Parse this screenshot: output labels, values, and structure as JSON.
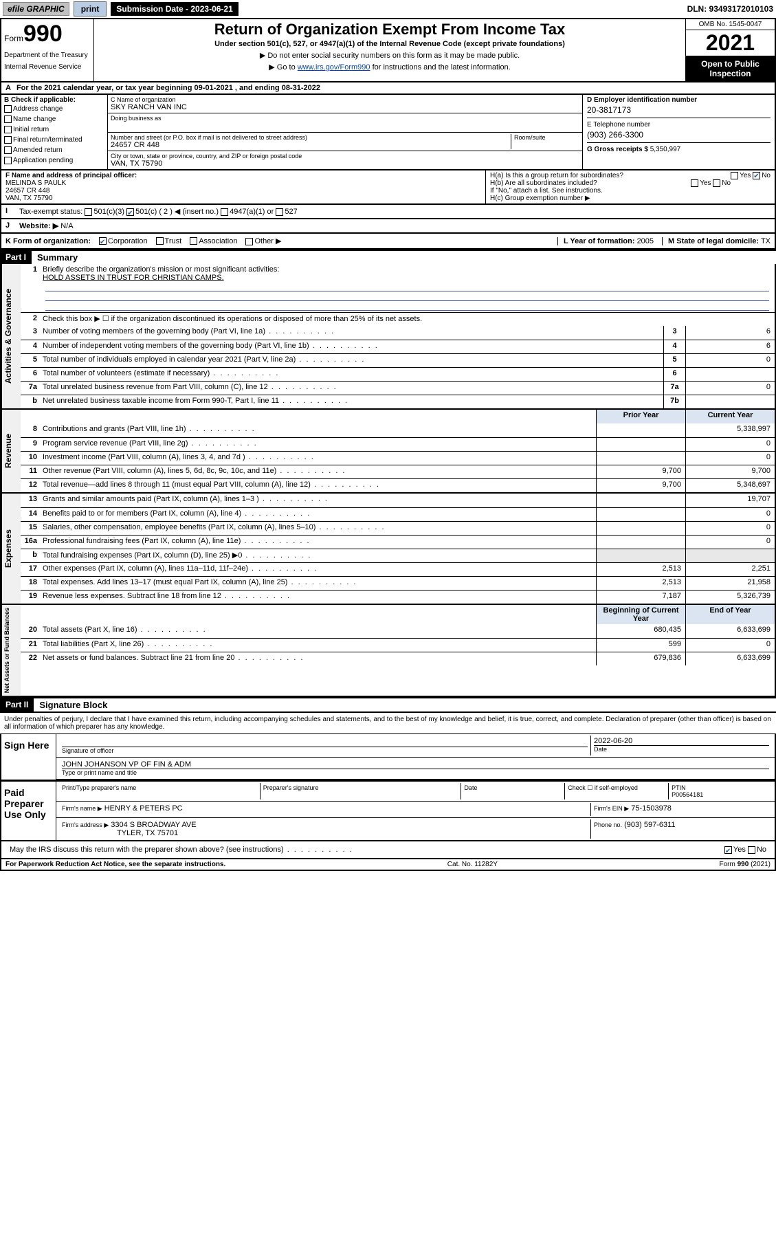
{
  "topbar": {
    "efile": "efile GRAPHIC",
    "print": "print",
    "submission": "Submission Date - 2023-06-21",
    "dln": "DLN: 93493172010103"
  },
  "header": {
    "form_label": "Form",
    "form_num": "990",
    "dept": "Department of the Treasury",
    "irs": "Internal Revenue Service",
    "title": "Return of Organization Exempt From Income Tax",
    "sub1": "Under section 501(c), 527, or 4947(a)(1) of the Internal Revenue Code (except private foundations)",
    "sub2a": "▶ Do not enter social security numbers on this form as it may be made public.",
    "sub2b_pre": "▶ Go to ",
    "sub2b_link": "www.irs.gov/Form990",
    "sub2b_post": " for instructions and the latest information.",
    "omb": "OMB No. 1545-0047",
    "year": "2021",
    "open": "Open to Public Inspection"
  },
  "row_a": {
    "label": "A",
    "text": "For the 2021 calendar year, or tax year beginning 09-01-2021   , and ending 08-31-2022"
  },
  "col_b": {
    "label": "B Check if applicable:",
    "items": [
      "Address change",
      "Name change",
      "Initial return",
      "Final return/terminated",
      "Amended return",
      "Application pending"
    ]
  },
  "col_c": {
    "name_label": "C Name of organization",
    "name": "SKY RANCH VAN INC",
    "dba_label": "Doing business as",
    "dba": "",
    "street_label": "Number and street (or P.O. box if mail is not delivered to street address)",
    "street": "24657 CR 448",
    "room_label": "Room/suite",
    "city_label": "City or town, state or province, country, and ZIP or foreign postal code",
    "city": "VAN, TX  75790"
  },
  "col_de": {
    "d_label": "D Employer identification number",
    "d_val": "20-3817173",
    "e_label": "E Telephone number",
    "e_val": "(903) 266-3300",
    "g_label": "G Gross receipts $",
    "g_val": "5,350,997"
  },
  "row_f": {
    "label": "F  Name and address of principal officer:",
    "name": "MELINDA S PAULK",
    "street": "24657 CR 448",
    "city": "VAN, TX  75790"
  },
  "row_h": {
    "ha": "H(a)  Is this a group return for subordinates?",
    "ha_yes": "Yes",
    "ha_no": "No",
    "hb": "H(b)  Are all subordinates included?",
    "hb_note": "If \"No,\" attach a list. See instructions.",
    "hc": "H(c)  Group exemption number ▶"
  },
  "row_i": {
    "label": "Tax-exempt status:",
    "opts": [
      "501(c)(3)",
      "501(c) ( 2 ) ◀ (insert no.)",
      "4947(a)(1) or",
      "527"
    ]
  },
  "row_j": {
    "label": "Website: ▶",
    "val": "N/A"
  },
  "row_k": {
    "label": "K Form of organization:",
    "opts": [
      "Corporation",
      "Trust",
      "Association",
      "Other ▶"
    ],
    "l_label": "L Year of formation:",
    "l_val": "2005",
    "m_label": "M State of legal domicile:",
    "m_val": "TX"
  },
  "part1": {
    "hdr": "Part I",
    "title": "Summary",
    "line1_label": "Briefly describe the organization's mission or most significant activities:",
    "line1_val": "HOLD ASSETS IN TRUST FOR CHRISTIAN CAMPS.",
    "line2": "Check this box ▶ ☐  if the organization discontinued its operations or disposed of more than 25% of its net assets.",
    "lines_ag": [
      {
        "n": "3",
        "t": "Number of voting members of the governing body (Part VI, line 1a)",
        "b": "3",
        "v": "6"
      },
      {
        "n": "4",
        "t": "Number of independent voting members of the governing body (Part VI, line 1b)",
        "b": "4",
        "v": "6"
      },
      {
        "n": "5",
        "t": "Total number of individuals employed in calendar year 2021 (Part V, line 2a)",
        "b": "5",
        "v": "0"
      },
      {
        "n": "6",
        "t": "Total number of volunteers (estimate if necessary)",
        "b": "6",
        "v": ""
      },
      {
        "n": "7a",
        "t": "Total unrelated business revenue from Part VIII, column (C), line 12",
        "b": "7a",
        "v": "0"
      },
      {
        "n": "b",
        "t": "Net unrelated business taxable income from Form 990-T, Part I, line 11",
        "b": "7b",
        "v": ""
      }
    ],
    "col_hdr_prior": "Prior Year",
    "col_hdr_curr": "Current Year",
    "revenue": [
      {
        "n": "8",
        "t": "Contributions and grants (Part VIII, line 1h)",
        "pv": "",
        "cv": "5,338,997"
      },
      {
        "n": "9",
        "t": "Program service revenue (Part VIII, line 2g)",
        "pv": "",
        "cv": "0"
      },
      {
        "n": "10",
        "t": "Investment income (Part VIII, column (A), lines 3, 4, and 7d )",
        "pv": "",
        "cv": "0"
      },
      {
        "n": "11",
        "t": "Other revenue (Part VIII, column (A), lines 5, 6d, 8c, 9c, 10c, and 11e)",
        "pv": "9,700",
        "cv": "9,700"
      },
      {
        "n": "12",
        "t": "Total revenue—add lines 8 through 11 (must equal Part VIII, column (A), line 12)",
        "pv": "9,700",
        "cv": "5,348,697"
      }
    ],
    "expenses": [
      {
        "n": "13",
        "t": "Grants and similar amounts paid (Part IX, column (A), lines 1–3 )",
        "pv": "",
        "cv": "19,707"
      },
      {
        "n": "14",
        "t": "Benefits paid to or for members (Part IX, column (A), line 4)",
        "pv": "",
        "cv": "0"
      },
      {
        "n": "15",
        "t": "Salaries, other compensation, employee benefits (Part IX, column (A), lines 5–10)",
        "pv": "",
        "cv": "0"
      },
      {
        "n": "16a",
        "t": "Professional fundraising fees (Part IX, column (A), line 11e)",
        "pv": "",
        "cv": "0"
      },
      {
        "n": "b",
        "t": "Total fundraising expenses (Part IX, column (D), line 25) ▶0",
        "pv": "shaded",
        "cv": "shaded"
      },
      {
        "n": "17",
        "t": "Other expenses (Part IX, column (A), lines 11a–11d, 11f–24e)",
        "pv": "2,513",
        "cv": "2,251"
      },
      {
        "n": "18",
        "t": "Total expenses. Add lines 13–17 (must equal Part IX, column (A), line 25)",
        "pv": "2,513",
        "cv": "21,958"
      },
      {
        "n": "19",
        "t": "Revenue less expenses. Subtract line 18 from line 12",
        "pv": "7,187",
        "cv": "5,326,739"
      }
    ],
    "nab_hdr_beg": "Beginning of Current Year",
    "nab_hdr_end": "End of Year",
    "nab": [
      {
        "n": "20",
        "t": "Total assets (Part X, line 16)",
        "pv": "680,435",
        "cv": "6,633,699"
      },
      {
        "n": "21",
        "t": "Total liabilities (Part X, line 26)",
        "pv": "599",
        "cv": "0"
      },
      {
        "n": "22",
        "t": "Net assets or fund balances. Subtract line 21 from line 20",
        "pv": "679,836",
        "cv": "6,633,699"
      }
    ]
  },
  "part2": {
    "hdr": "Part II",
    "title": "Signature Block",
    "intro": "Under penalties of perjury, I declare that I have examined this return, including accompanying schedules and statements, and to the best of my knowledge and belief, it is true, correct, and complete. Declaration of preparer (other than officer) is based on all information of which preparer has any knowledge.",
    "sign_here": "Sign Here",
    "sig_label": "Signature of officer",
    "date_label": "Date",
    "date_val": "2022-06-20",
    "officer": "JOHN JOHANSON VP OF FIN & ADM",
    "officer_label": "Type or print name and title",
    "paid": "Paid Preparer Use Only",
    "prep_name_label": "Print/Type preparer's name",
    "prep_sig_label": "Preparer's signature",
    "prep_date_label": "Date",
    "check_self": "Check ☐ if self-employed",
    "ptin_label": "PTIN",
    "ptin": "P00564181",
    "firm_name_label": "Firm's name    ▶",
    "firm_name": "HENRY & PETERS PC",
    "firm_ein_label": "Firm's EIN ▶",
    "firm_ein": "75-1503978",
    "firm_addr_label": "Firm's address ▶",
    "firm_addr1": "3304 S BROADWAY AVE",
    "firm_addr2": "TYLER, TX  75701",
    "phone_label": "Phone no.",
    "phone": "(903) 597-6311",
    "discuss": "May the IRS discuss this return with the preparer shown above? (see instructions)",
    "discuss_yes": "Yes",
    "discuss_no": "No"
  },
  "footer": {
    "left": "For Paperwork Reduction Act Notice, see the separate instructions.",
    "mid": "Cat. No. 11282Y",
    "right": "Form 990 (2021)"
  }
}
